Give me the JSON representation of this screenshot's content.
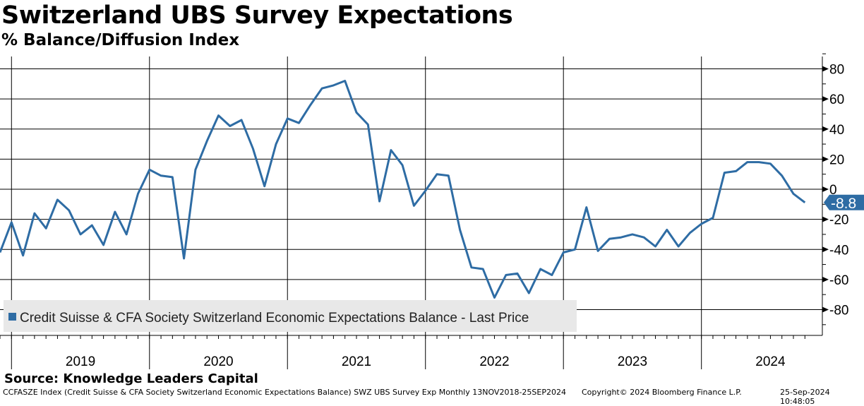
{
  "chart_data": {
    "type": "line",
    "title": "Switzerland UBS Survey Expectations",
    "subtitle": "% Balance/Diffusion Index",
    "ylim": [
      -95,
      90
    ],
    "yticks": [
      80,
      60,
      40,
      20,
      0,
      -20,
      -40,
      -60,
      -80
    ],
    "x_start": "2018-11",
    "x_end": "2024-09",
    "frequency": "monthly",
    "year_labels": [
      "2019",
      "2020",
      "2021",
      "2022",
      "2023",
      "2024"
    ],
    "grid": true,
    "legend_position": "bottom-left",
    "series": [
      {
        "name": "Credit Suisse & CFA Society Switzerland Economic Expectations Balance - Last Price",
        "color": "#2e6ca4",
        "values": [
          -42,
          -22,
          -44,
          -16,
          -26,
          -7,
          -14,
          -30,
          -24,
          -37,
          -15,
          -30,
          -3,
          13,
          9,
          8,
          -46,
          13,
          32,
          49,
          42,
          46,
          27,
          2,
          30,
          47,
          44,
          56,
          67,
          69,
          72,
          51,
          43,
          -8,
          26,
          16,
          -11,
          -1,
          10,
          9,
          -27,
          -52,
          -53,
          -72,
          -57,
          -56,
          -69,
          -53,
          -57,
          -42,
          -40,
          -12,
          -41,
          -33,
          -32,
          -30,
          -32,
          -38,
          -27,
          -38,
          -29,
          -23,
          -19,
          11,
          12,
          18,
          18,
          17,
          9,
          -3,
          -8.8
        ]
      }
    ],
    "last_value_label": "-8.8"
  },
  "source": "Source:  Knowledge Leaders Capital",
  "footer": {
    "left": "CCFASZE Index (Credit Suisse & CFA Society Switzerland Economic Expectations Balance) SWZ UBS Survey Exp  Monthly 13NOV2018-25SEP2024",
    "center": "Copyright© 2024 Bloomberg Finance L.P.",
    "right": "25-Sep-2024 10:48:05"
  }
}
